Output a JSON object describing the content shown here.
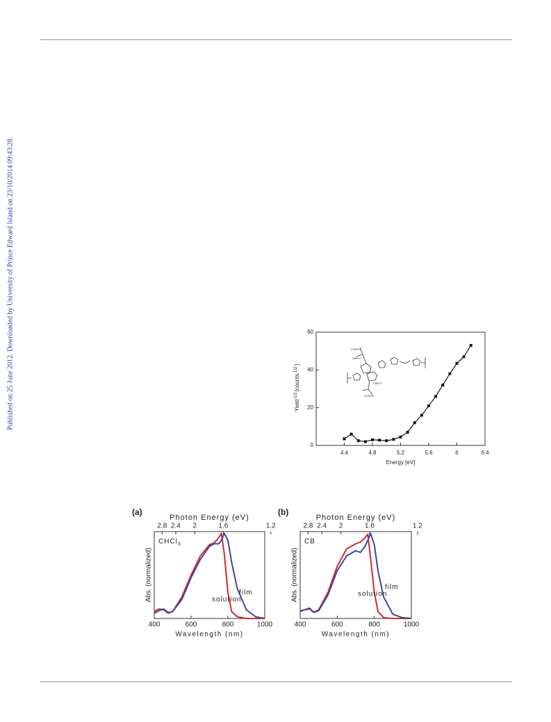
{
  "side_text": "Published on 25 June 2012. Downloaded by University of Prince Edward Island on 23/10/2014 09:43:28.",
  "chart_data": [
    {
      "type": "line",
      "x_label": "Energy [eV]",
      "y_label": [
        "Yield",
        "1/2",
        "[counts",
        "1/2",
        "]"
      ],
      "inset_labels": [
        "C10H21",
        "C8H17",
        "C8H17",
        "C10H21"
      ],
      "x": [
        4.4,
        4.5,
        4.6,
        4.7,
        4.8,
        4.9,
        5.0,
        5.1,
        5.2,
        5.3,
        5.4,
        5.5,
        5.6,
        5.7,
        5.8,
        5.9,
        6.0,
        6.1,
        6.2
      ],
      "values": [
        3.5,
        6,
        2.5,
        2,
        3,
        2.8,
        2.5,
        3.2,
        4.5,
        7,
        12,
        16,
        21,
        26,
        32,
        38,
        43.5,
        47,
        53
      ],
      "color": "#111111",
      "marker": "square",
      "xlim": [
        4.0,
        6.4
      ],
      "xticks": [
        4.4,
        4.8,
        5.2,
        5.6,
        6.0,
        6.4
      ],
      "ylim": [
        0,
        60
      ],
      "yticks": [
        0,
        20,
        40,
        60
      ]
    },
    {
      "type": "line",
      "panel_label": "(a)",
      "inset_label": [
        "CHCl",
        "3"
      ],
      "x_label": "Wavelength (nm)",
      "x2_label": "Photon Energy (eV)",
      "y_label": "Abs. (normalized)",
      "x": [
        400,
        425,
        450,
        475,
        500,
        550,
        600,
        650,
        700,
        725,
        750,
        765,
        780,
        800,
        820,
        850,
        900,
        950,
        1000
      ],
      "series": [
        {
          "name": "solution",
          "color": "#d62a2a",
          "values": [
            0.08,
            0.11,
            0.1,
            0.06,
            0.08,
            0.25,
            0.5,
            0.72,
            0.85,
            0.87,
            0.93,
            0.98,
            0.75,
            0.3,
            0.08,
            0.02,
            0,
            0,
            0
          ]
        },
        {
          "name": "film",
          "color": "#3c45a0",
          "values": [
            0.06,
            0.09,
            0.11,
            0.07,
            0.08,
            0.22,
            0.47,
            0.68,
            0.83,
            0.86,
            0.86,
            0.9,
            0.98,
            0.9,
            0.65,
            0.35,
            0.1,
            0.02,
            0
          ]
        }
      ],
      "xlim": [
        400,
        1000
      ],
      "xticks": [
        400,
        600,
        800,
        1000
      ],
      "x2ticks": [
        2.8,
        2.4,
        2.0,
        1.6,
        1.2
      ],
      "ylim": [
        0,
        1
      ]
    },
    {
      "type": "line",
      "panel_label": "(b)",
      "inset_label": [
        "CB"
      ],
      "x_label": "Wavelength (nm)",
      "x2_label": "Photon Energy (eV)",
      "y_label": "Abs. (normalized)",
      "x": [
        400,
        425,
        450,
        475,
        500,
        550,
        600,
        650,
        700,
        725,
        750,
        765,
        780,
        800,
        820,
        850,
        900,
        950,
        1000
      ],
      "series": [
        {
          "name": "solution",
          "color": "#d62a2a",
          "values": [
            0.09,
            0.1,
            0.11,
            0.07,
            0.1,
            0.3,
            0.6,
            0.8,
            0.86,
            0.88,
            0.93,
            0.97,
            0.7,
            0.3,
            0.08,
            0.01,
            0,
            0,
            0
          ]
        },
        {
          "name": "film",
          "color": "#3c45a0",
          "values": [
            0.08,
            0.1,
            0.12,
            0.07,
            0.09,
            0.27,
            0.55,
            0.72,
            0.78,
            0.76,
            0.83,
            0.9,
            0.98,
            0.85,
            0.55,
            0.25,
            0.05,
            0.01,
            0
          ]
        }
      ],
      "xlim": [
        400,
        1000
      ],
      "xticks": [
        400,
        600,
        800,
        1000
      ],
      "x2ticks": [
        2.8,
        2.4,
        2.0,
        1.6,
        1.2
      ],
      "ylim": [
        0,
        1
      ]
    }
  ]
}
